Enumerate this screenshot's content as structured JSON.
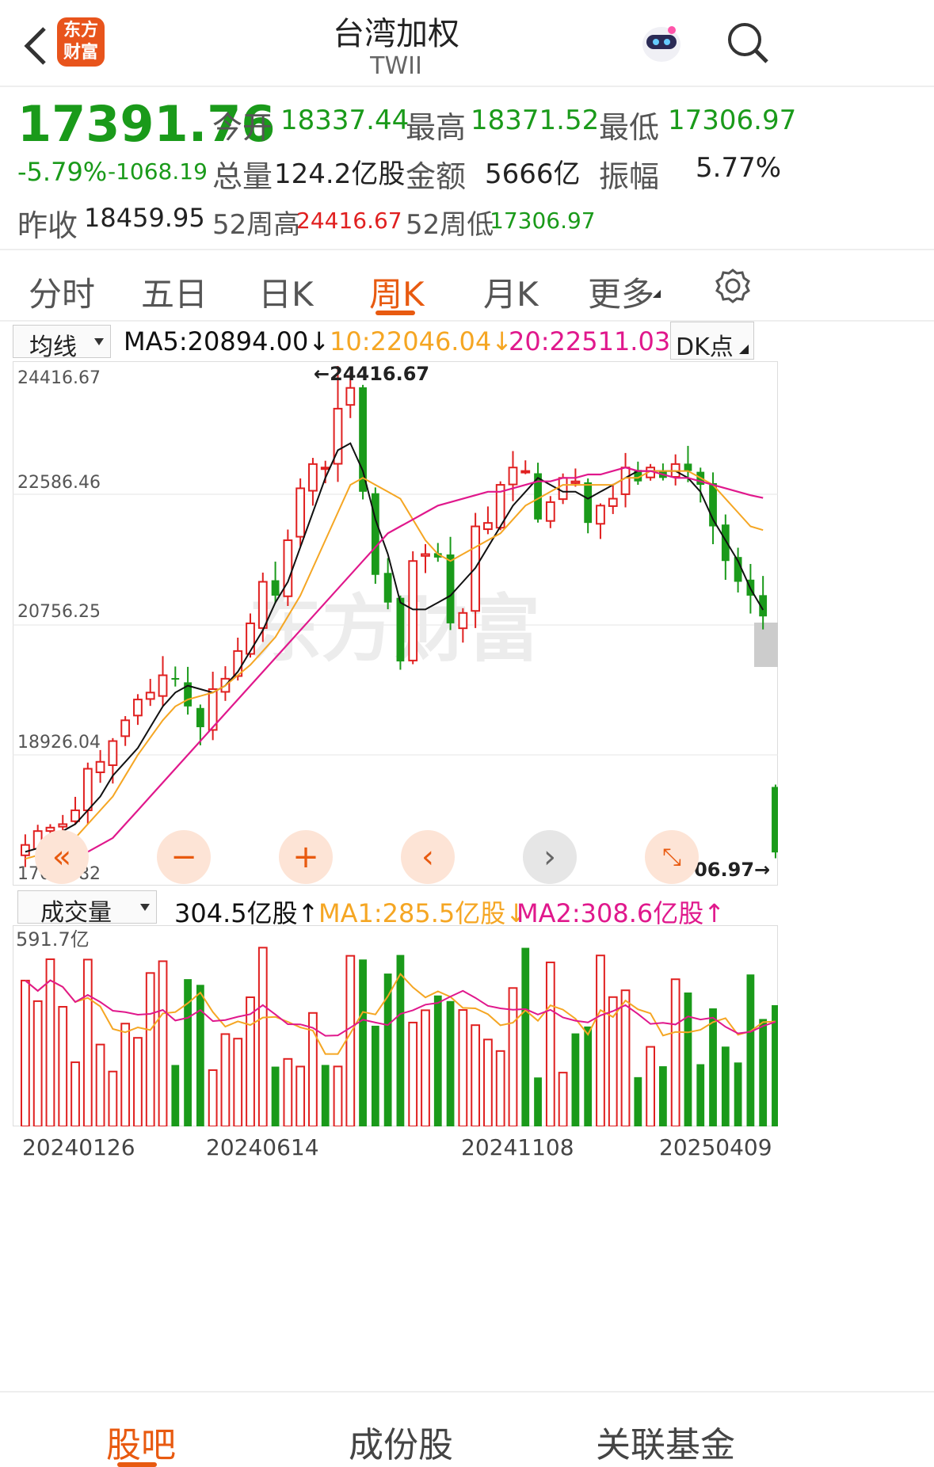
{
  "header": {
    "title": "台湾加权",
    "code": "TWII",
    "logo_top": "东方",
    "logo_bottom": "财富"
  },
  "quote": {
    "price": "17391.76",
    "change_pct": "-5.79%",
    "change": "-1068.19",
    "open_label": "今开",
    "open": "18337.44",
    "high_label": "最高",
    "high": "18371.52",
    "low_label": "最低",
    "low": "17306.97",
    "volume_label": "总量",
    "volume": "124.2亿股",
    "amount_label": "金额",
    "amount": "5666亿",
    "amplitude_label": "振幅",
    "amplitude": "5.77%",
    "prev_close_label": "昨收",
    "prev_close": "18459.95",
    "wk52_high_label": "52周高",
    "wk52_high": "24416.67",
    "wk52_low_label": "52周低",
    "wk52_low": "17306.97"
  },
  "tabs": [
    "分时",
    "五日",
    "日K",
    "周K",
    "月K",
    "更多"
  ],
  "active_tab": "周K",
  "indicators": {
    "ma_select": "均线",
    "ma5": "MA5:20894.00↓",
    "ma10": "10:22046.04↓",
    "ma20": "20:22511.03↓",
    "dk": "DK点"
  },
  "colors": {
    "up": "#e02020",
    "down": "#1a9a1a",
    "ma5": "#111111",
    "ma10": "#f5a623",
    "ma20": "#e0188c",
    "accent": "#e85a10"
  },
  "watermark": "东方财富",
  "chart_data": {
    "type": "candlestick",
    "y_ticks": [
      "24416.67",
      "22586.46",
      "20756.25",
      "18926.04",
      "17095.82"
    ],
    "ylim": [
      17095.82,
      24416.67
    ],
    "max_label": "←24416.67",
    "min_label": "17306.97→",
    "last": {
      "open": 18337.44,
      "high": 18371.52,
      "low": 17306.97,
      "close": 17391.76
    },
    "close_series": [
      17500,
      17700,
      17750,
      17800,
      18000,
      18600,
      18700,
      19000,
      19300,
      19600,
      19700,
      19950,
      19900,
      19500,
      19200,
      19750,
      19900,
      20300,
      20700,
      21300,
      21100,
      21900,
      22650,
      23000,
      22950,
      23800,
      24100,
      22600,
      21400,
      21000,
      20150,
      21600,
      21700,
      21650,
      20700,
      20850,
      22100,
      22150,
      22700,
      22950,
      22900,
      22200,
      22450,
      22800,
      22750,
      22150,
      22400,
      22500,
      22950,
      22750,
      22950,
      22800,
      23000,
      22900,
      22700,
      22100,
      21600,
      21300,
      21100,
      20800,
      17391.76
    ],
    "ma5": [
      17400,
      17450,
      17550,
      17700,
      17800,
      18000,
      18200,
      18500,
      18700,
      18900,
      19200,
      19500,
      19700,
      19800,
      19750,
      19700,
      19800,
      20000,
      20300,
      20600,
      21000,
      21300,
      21800,
      22300,
      22800,
      23200,
      23300,
      22900,
      22200,
      21700,
      21000,
      20900,
      20900,
      21000,
      21100,
      21300,
      21500,
      21800,
      22100,
      22400,
      22600,
      22800,
      22700,
      22600,
      22600,
      22500,
      22600,
      22700,
      22800,
      22900,
      22900,
      22900,
      22900,
      22800,
      22600,
      22200,
      21900,
      21600,
      21200,
      20894
    ],
    "ma10": [
      17300,
      17350,
      17400,
      17500,
      17600,
      17800,
      18000,
      18200,
      18500,
      18800,
      19050,
      19300,
      19500,
      19600,
      19650,
      19700,
      19800,
      19950,
      20100,
      20300,
      20500,
      20800,
      21100,
      21500,
      21900,
      22300,
      22700,
      22800,
      22700,
      22600,
      22500,
      22200,
      21900,
      21700,
      21600,
      21700,
      21800,
      21900,
      22000,
      22200,
      22400,
      22500,
      22600,
      22700,
      22700,
      22700,
      22700,
      22700,
      22800,
      22800,
      22900,
      22900,
      22900,
      22900,
      22800,
      22700,
      22500,
      22300,
      22100,
      22046
    ],
    "ma20": [
      17200,
      17250,
      17300,
      17400,
      17500,
      17600,
      17800,
      18000,
      18200,
      18400,
      18600,
      18800,
      19000,
      19200,
      19400,
      19600,
      19800,
      20000,
      20200,
      20400,
      20600,
      20800,
      21000,
      21200,
      21400,
      21600,
      21800,
      22000,
      22100,
      22200,
      22300,
      22400,
      22450,
      22500,
      22550,
      22600,
      22600,
      22650,
      22700,
      22750,
      22750,
      22800,
      22800,
      22850,
      22850,
      22900,
      22950,
      22900,
      22900,
      22850,
      22800,
      22800,
      22750,
      22700,
      22650,
      22600,
      22550,
      22511
    ],
    "volume_select": "成交量",
    "vol_label": "304.5亿股↑",
    "vol_ma1": "MA1:285.5亿股↓",
    "vol_ma2": "MA2:308.6亿股↑",
    "vol_max_label": "591.7亿",
    "x_ticks": [
      "20240126",
      "20240614",
      "20241108",
      "20250409"
    ]
  },
  "bottom_tabs": [
    "股吧",
    "成份股",
    "关联基金"
  ]
}
